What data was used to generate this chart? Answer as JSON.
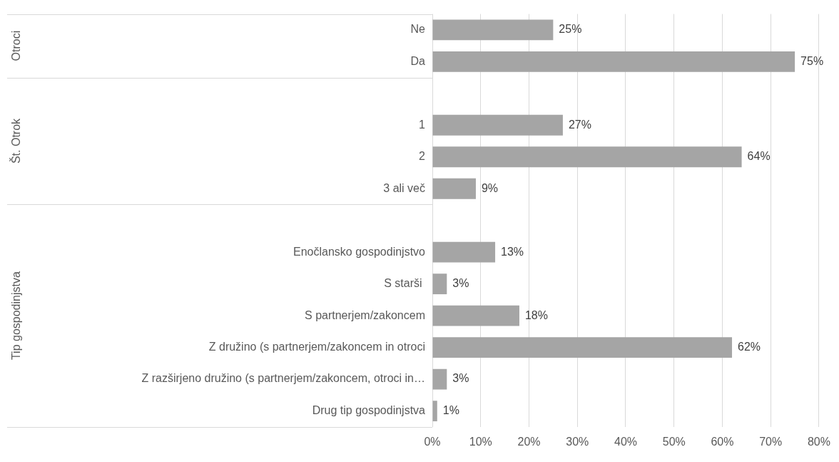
{
  "chart_data": {
    "type": "bar",
    "orientation": "horizontal",
    "categories": [
      "Ne",
      "Da",
      null,
      "1",
      "2",
      "3 ali več",
      null,
      "Enočlansko gospodinjstvo",
      "S starši ",
      "S partnerjem/zakoncem",
      "Z družino (s partnerjem/zakoncem in otroci",
      "Z razširjeno družino (s partnerjem/zakoncem, otroci in…",
      "Drug tip gospodinjstva"
    ],
    "values": [
      25,
      75,
      null,
      27,
      64,
      9,
      null,
      13,
      3,
      18,
      62,
      3,
      1
    ],
    "value_labels": [
      "25%",
      "75%",
      null,
      "27%",
      "64%",
      "9%",
      null,
      "13%",
      "3%",
      "18%",
      "62%",
      "3%",
      "1%"
    ],
    "color": "#a5a5a5",
    "xlim": [
      0,
      80
    ],
    "xticks": [
      {
        "value": 0,
        "label": "0%"
      },
      {
        "value": 10,
        "label": "10%"
      },
      {
        "value": 20,
        "label": "20%"
      },
      {
        "value": 30,
        "label": "30%"
      },
      {
        "value": 40,
        "label": "40%"
      },
      {
        "value": 50,
        "label": "50%"
      },
      {
        "value": 60,
        "label": "60%"
      },
      {
        "value": 70,
        "label": "70%"
      },
      {
        "value": 80,
        "label": "80%"
      }
    ],
    "annotations": [
      "Otroci",
      "Št. Otrok",
      "Tip gospodinjstva"
    ],
    "grid": "x",
    "legend": false
  }
}
